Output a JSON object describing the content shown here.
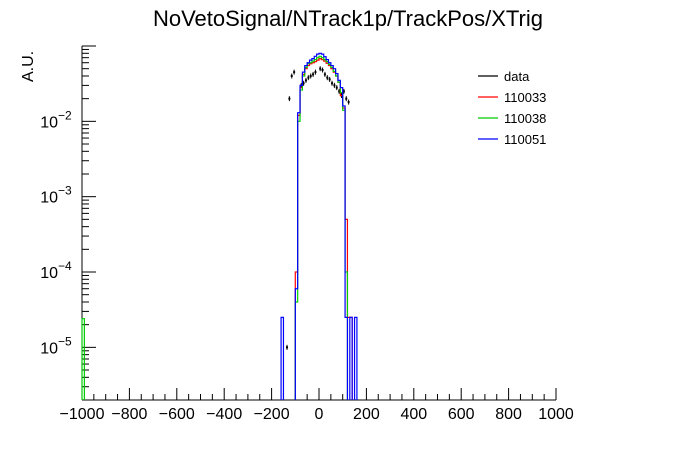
{
  "chart_data": {
    "type": "line",
    "title": "NoVetoSignal/NTrack1p/TrackPos/XTrig",
    "xlabel": "",
    "ylabel": "A.U.",
    "xlim": [
      -1000,
      1000
    ],
    "ylim": [
      2e-06,
      0.1
    ],
    "yscale": "log",
    "x_ticks": [
      -1000,
      -800,
      -600,
      -400,
      -200,
      0,
      200,
      400,
      600,
      800,
      1000
    ],
    "x_tick_labels": [
      "−1000",
      "−800",
      "−600",
      "−400",
      "−200",
      "0",
      "200",
      "400",
      "600",
      "800",
      "1000"
    ],
    "y_ticks": [
      1e-05,
      0.0001,
      0.001,
      0.01
    ],
    "y_tick_labels": [
      {
        "base": "10",
        "exp": "−5"
      },
      {
        "base": "10",
        "exp": "−4"
      },
      {
        "base": "10",
        "exp": "−3"
      },
      {
        "base": "10",
        "exp": "−2"
      }
    ],
    "legend_position": "top-right",
    "bin_width": 10,
    "series": [
      {
        "name": "data",
        "style": "points",
        "color": "#000000",
        "points": [
          {
            "x": -135,
            "y": 1e-05
          },
          {
            "x": -125,
            "y": 0.02
          },
          {
            "x": -115,
            "y": 0.04
          },
          {
            "x": -105,
            "y": 0.045
          },
          {
            "x": -75,
            "y": 0.03
          },
          {
            "x": -65,
            "y": 0.032
          },
          {
            "x": -55,
            "y": 0.035
          },
          {
            "x": -45,
            "y": 0.038
          },
          {
            "x": -35,
            "y": 0.04
          },
          {
            "x": -25,
            "y": 0.042
          },
          {
            "x": -15,
            "y": 0.045
          },
          {
            "x": 5,
            "y": 0.05
          },
          {
            "x": 15,
            "y": 0.048
          },
          {
            "x": 25,
            "y": 0.042
          },
          {
            "x": 35,
            "y": 0.038
          },
          {
            "x": 45,
            "y": 0.036
          },
          {
            "x": 55,
            "y": 0.032
          },
          {
            "x": 65,
            "y": 0.03
          },
          {
            "x": 75,
            "y": 0.028
          },
          {
            "x": 85,
            "y": 0.025
          },
          {
            "x": 95,
            "y": 0.022
          },
          {
            "x": 105,
            "y": 0.025
          },
          {
            "x": 115,
            "y": 0.02
          },
          {
            "x": 125,
            "y": 0.018
          }
        ]
      },
      {
        "name": "110033",
        "style": "hist",
        "color": "#ff0000",
        "bins": [
          {
            "x": -100,
            "y": 0.0001
          },
          {
            "x": -90,
            "y": 0.012
          },
          {
            "x": -80,
            "y": 0.028
          },
          {
            "x": -70,
            "y": 0.042
          },
          {
            "x": -60,
            "y": 0.05
          },
          {
            "x": -50,
            "y": 0.055
          },
          {
            "x": -40,
            "y": 0.058
          },
          {
            "x": -30,
            "y": 0.06
          },
          {
            "x": -20,
            "y": 0.062
          },
          {
            "x": -10,
            "y": 0.065
          },
          {
            "x": 0,
            "y": 0.068
          },
          {
            "x": 10,
            "y": 0.066
          },
          {
            "x": 20,
            "y": 0.063
          },
          {
            "x": 30,
            "y": 0.059
          },
          {
            "x": 40,
            "y": 0.055
          },
          {
            "x": 50,
            "y": 0.05
          },
          {
            "x": 60,
            "y": 0.045
          },
          {
            "x": 70,
            "y": 0.04
          },
          {
            "x": 80,
            "y": 0.033
          },
          {
            "x": 90,
            "y": 0.022
          },
          {
            "x": 100,
            "y": 0.015
          },
          {
            "x": 110,
            "y": 0.0005
          },
          {
            "x": 120,
            "y": 2.5e-05
          },
          {
            "x": 130,
            "y": 2.5e-05
          }
        ]
      },
      {
        "name": "110038",
        "style": "hist",
        "color": "#00cc00",
        "bins": [
          {
            "x": -1000,
            "y": 2.4e-05
          },
          {
            "x": -100,
            "y": 4e-05
          },
          {
            "x": -90,
            "y": 0.01
          },
          {
            "x": -80,
            "y": 0.026
          },
          {
            "x": -70,
            "y": 0.04
          },
          {
            "x": -60,
            "y": 0.052
          },
          {
            "x": -50,
            "y": 0.058
          },
          {
            "x": -40,
            "y": 0.06
          },
          {
            "x": -30,
            "y": 0.063
          },
          {
            "x": -20,
            "y": 0.066
          },
          {
            "x": -10,
            "y": 0.07
          },
          {
            "x": 0,
            "y": 0.073
          },
          {
            "x": 10,
            "y": 0.07
          },
          {
            "x": 20,
            "y": 0.066
          },
          {
            "x": 30,
            "y": 0.062
          },
          {
            "x": 40,
            "y": 0.057
          },
          {
            "x": 50,
            "y": 0.052
          },
          {
            "x": 60,
            "y": 0.046
          },
          {
            "x": 70,
            "y": 0.04
          },
          {
            "x": 80,
            "y": 0.033
          },
          {
            "x": 90,
            "y": 0.024
          },
          {
            "x": 100,
            "y": 0.014
          },
          {
            "x": 110,
            "y": 0.0001
          }
        ]
      },
      {
        "name": "110051",
        "style": "hist",
        "color": "#0000ff",
        "bins": [
          {
            "x": -160,
            "y": 2.5e-05
          },
          {
            "x": -100,
            "y": 6e-05
          },
          {
            "x": -90,
            "y": 0.013
          },
          {
            "x": -80,
            "y": 0.03
          },
          {
            "x": -70,
            "y": 0.045
          },
          {
            "x": -60,
            "y": 0.055
          },
          {
            "x": -50,
            "y": 0.06
          },
          {
            "x": -40,
            "y": 0.065
          },
          {
            "x": -30,
            "y": 0.068
          },
          {
            "x": -20,
            "y": 0.073
          },
          {
            "x": -10,
            "y": 0.078
          },
          {
            "x": 0,
            "y": 0.08
          },
          {
            "x": 10,
            "y": 0.078
          },
          {
            "x": 20,
            "y": 0.072
          },
          {
            "x": 30,
            "y": 0.066
          },
          {
            "x": 40,
            "y": 0.06
          },
          {
            "x": 50,
            "y": 0.055
          },
          {
            "x": 60,
            "y": 0.05
          },
          {
            "x": 70,
            "y": 0.043
          },
          {
            "x": 80,
            "y": 0.035
          },
          {
            "x": 90,
            "y": 0.028
          },
          {
            "x": 100,
            "y": 0.016
          },
          {
            "x": 110,
            "y": 2.5e-05
          },
          {
            "x": 130,
            "y": 2.5e-05
          },
          {
            "x": 150,
            "y": 2.5e-05
          }
        ]
      }
    ]
  }
}
